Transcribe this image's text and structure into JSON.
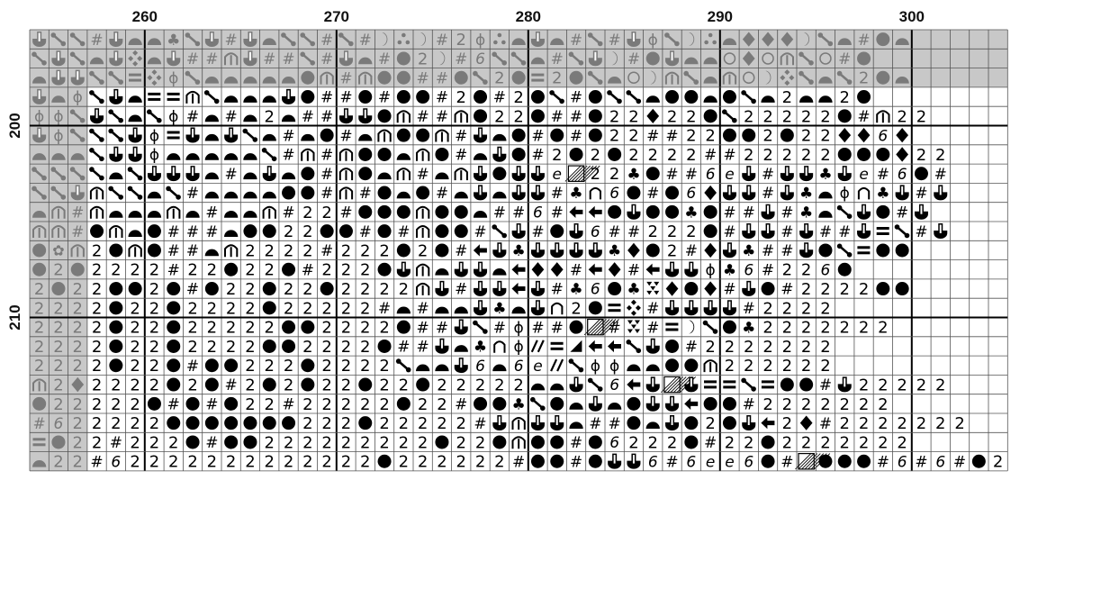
{
  "title": "",
  "col_start": 254,
  "row_start": 195,
  "column_labels": [
    "260",
    "270",
    "280",
    "290",
    "300"
  ],
  "row_labels": [
    "200",
    "210"
  ],
  "colors": {
    "background": "#ffffff",
    "shaded_cell": "#c8c8c8",
    "shaded_symbol": "#7a7a7a",
    "symbol": "#000000",
    "grid_thin": "#555555",
    "grid_major": "#000000"
  },
  "legend_symbols": {
    "A": "arrow-down-fork",
    "S": "diagonal-link",
    "#": "hash",
    "m": "half-dome",
    "O": "filled-circle",
    "2": "digit-two",
    "6": "digit-six",
    "e": "script-e",
    "H": "arch",
    "F": "phi",
    "=": "double-bar",
    "D": "diamond",
    "C": "crescent",
    "T": "three-dots",
    "c": "club",
    "x": "four-diamonds",
    "L": "left-arrow",
    "n": "open-arch",
    "h": "hatched-square",
    "v": "five-triangles",
    "/": "double-slash",
    "t": "right-triangle",
    "f": "flower",
    "o": "open-circle"
  },
  "grid": [
    "ASS#AmmcSA#AmSS#S#CTC#2FTmAm#S#AFSCTmDDDCSm#Om",
    "SASmAxmA##HA##S#Am#O2C#6SSm#SAC#OAmmoDoHSo#O",
    "mAASS=xFSmmmmmOH#HOO##OS2O=2OSmoCHSmHoCxSmS2Om",
    "AmFSAm==HSmmmAO##O#OO#2O#2OS#OSSmOOmOSm2mm2O",
    "FFSASmSF#m#m2m##AAOH##HO22O##O22D22OS22222O#H22",
    "AFSSSAF=AmASm#mO#mHOOH#AmO#O#O22##22OO2O22DD6D",
    "mmmSAAFmmmmmS#H#HOOmHO#mAO#2O2O2222##22222OOOD22",
    "SSSSmSAAAm#mAmO#HOmH#mHAOAAeh22cO##6eA#AAcAe#6O#",
    "SSAHSSmS#mmmmOO#H#OmO#mAmAA#cn6O#O6DAA#AcmFncA#A",
    "mH#HmmmHm#mmH#22#OOOHOOm##6#LLOAOOcO##A#cmSAO#A",
    "HH#OHmO###mOO22OO#O#HOO#SA#OA6##222O#AA#A##A=S#A",
    "OfH2OHO##mH2222#222O2O#LAcAAAAcDO2#DAc##AOS=OO",
    "O2O2222#22O22O#222OAHmAAmLDD#LD#LAAFc6#226O",
    "2O22OO2O#O22O22O2222HA#AALA#c6OcvDOD#AO#2222OO",
    "2222O22O2222O22222#m#mmAcmAn2O=x#AAAA#2222",
    "2222O22O22222OO2222O##AS#F##Oh#v#=CSOc2222222",
    "2222O22O2222OO2222O##AmcnF/=tLLSAO#2222222",
    "2222O22O#OO222O2222SmmA6m6e/SFFmmOOH222222",
    "H2D2222O2O#2O2O22O22O22222mmAS6LAhA==S=OO#A22222",
    "O22222O#O#O22#22222O22#OOcSOmAmOAALOO#2222222",
    "#622222OOOOOOO222O22222#AHAAm##OmAO2OAL2D#2222222",
    "=O22#222O#OO222222222O22OHOO#O6222O#22O2222222",
    "m22#62222222222222O222222#OO#OAA6#6ee6O#hOOO#6#6#O2"
  ]
}
